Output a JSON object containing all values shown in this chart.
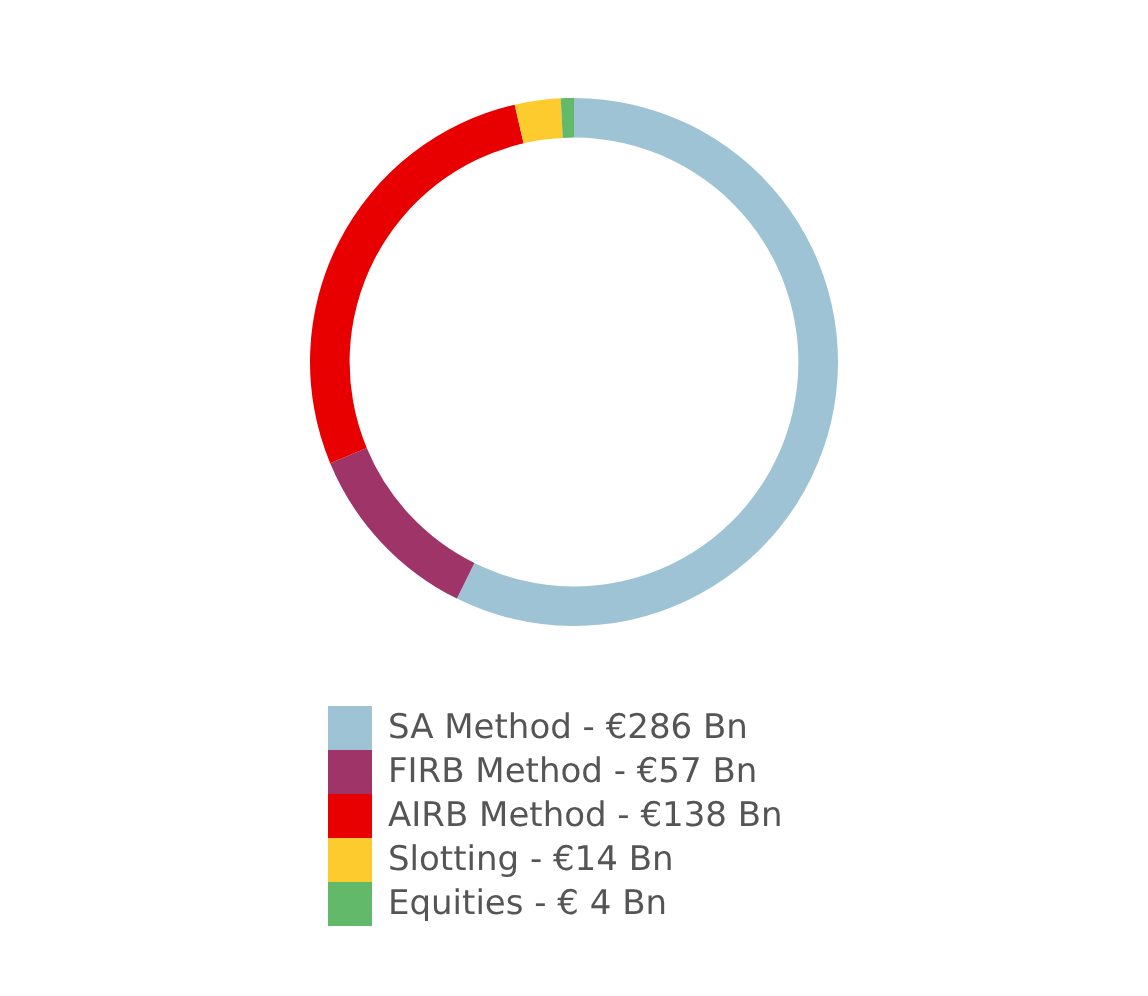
{
  "chart_data": {
    "type": "donut",
    "categories": [
      "SA Method",
      "FIRB Method",
      "AIRB Method",
      "Slotting",
      "Equities"
    ],
    "values": [
      286,
      57,
      138,
      14,
      4
    ],
    "value_labels": [
      "€286 Bn",
      "€57 Bn",
      "€138 Bn",
      "€14 Bn",
      "€ 4 Bn"
    ],
    "colors": [
      "#9dc3d4",
      "#9e3468",
      "#e80000",
      "#fdcb2e",
      "#63b96a"
    ],
    "legend": "bottom"
  }
}
